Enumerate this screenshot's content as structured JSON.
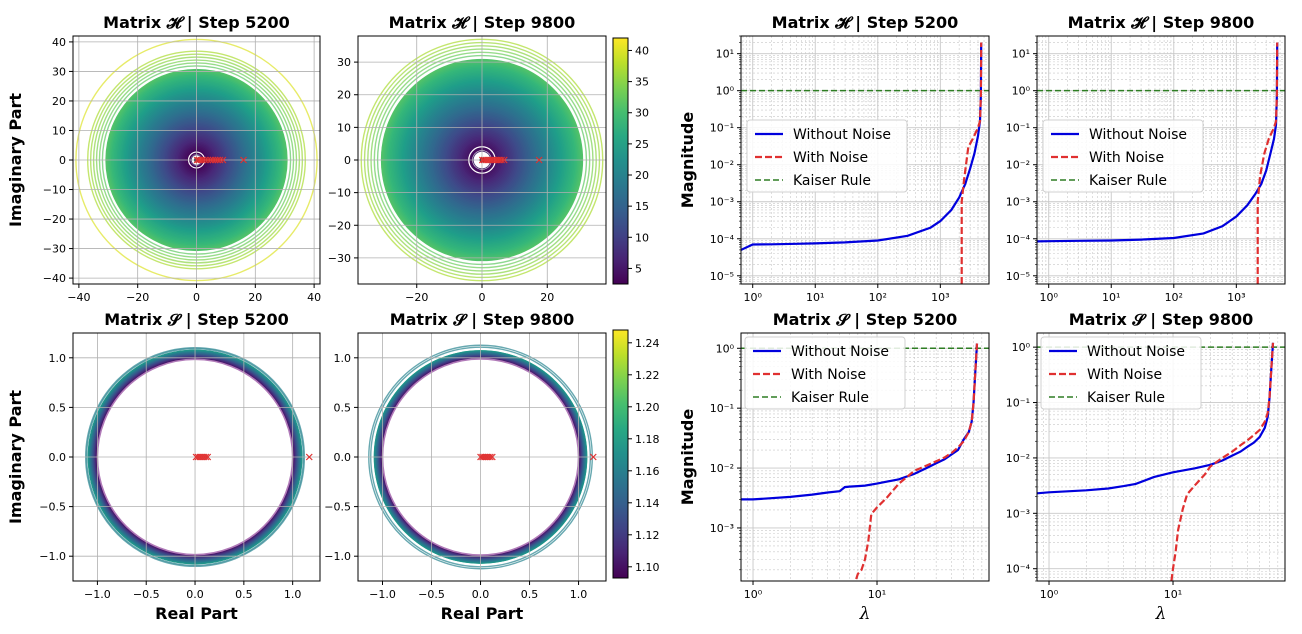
{
  "chart_data": [
    {
      "id": "H5200",
      "type": "scatter",
      "title": "Matrix 𝓗 | Step 5200",
      "xlabel": "",
      "ylabel": "Imaginary Part",
      "xlim": [
        -42,
        42
      ],
      "ylim": [
        -42,
        42
      ],
      "xticks": [
        -40,
        -20,
        0,
        20,
        40
      ],
      "yticks": [
        -40,
        -30,
        -20,
        -10,
        0,
        10,
        20,
        30,
        40
      ],
      "grid": true,
      "rings": {
        "r_inner": 2,
        "r_outer": 31,
        "sparse_radii": [
          32,
          33,
          34,
          35,
          36,
          37,
          41
        ],
        "scale": "H"
      },
      "eigenvalues": [
        0.2,
        0.8,
        1.5,
        2.2,
        3.0,
        3.9,
        4.8,
        5.6,
        6.4,
        7.2,
        8.0,
        9.0,
        16.0
      ]
    },
    {
      "id": "H9800",
      "type": "scatter",
      "title": "Matrix 𝓗 | Step 9800",
      "xlabel": "",
      "ylabel": "",
      "xlim": [
        -38,
        38
      ],
      "ylim": [
        -38,
        38
      ],
      "xticks": [
        -20,
        0,
        20
      ],
      "yticks": [
        -30,
        -20,
        -10,
        0,
        10,
        20,
        30
      ],
      "grid": true,
      "rings": {
        "r_inner": 3,
        "r_outer": 31,
        "sparse_radii": [
          32,
          33,
          34,
          35,
          36,
          37
        ],
        "scale": "H"
      },
      "eigenvalues": [
        0.1,
        0.6,
        1.2,
        1.8,
        2.4,
        3.0,
        3.6,
        4.2,
        4.8,
        5.4,
        6.0,
        6.8,
        17.5
      ]
    },
    {
      "id": "S5200",
      "type": "scatter",
      "title": "Matrix 𝓢 | Step 5200",
      "xlabel": "Real Part",
      "ylabel": "Imaginary Part",
      "xlim": [
        -1.25,
        1.28
      ],
      "ylim": [
        -1.25,
        1.25
      ],
      "xticks": [
        -1.0,
        -0.5,
        0.0,
        0.5,
        1.0
      ],
      "yticks": [
        -1.0,
        -0.5,
        0.0,
        0.5,
        1.0
      ],
      "xticklabels": [
        "−1.0",
        "−0.5",
        "0.0",
        "0.5",
        "1.0"
      ],
      "yticklabels": [
        "−1.0",
        "−0.5",
        "0.0",
        "0.5",
        "1.0"
      ],
      "grid": true,
      "rings": {
        "r_inner": 1.0,
        "r_outer": 1.1,
        "sparse_radii": [
          1.11,
          1.12
        ],
        "scale": "S"
      },
      "eigenvalues": [
        0.01,
        0.03,
        0.05,
        0.07,
        0.09,
        0.11,
        0.13,
        1.17
      ]
    },
    {
      "id": "S9800",
      "type": "scatter",
      "title": "Matrix 𝓢 | Step 9800",
      "xlabel": "Real Part",
      "ylabel": "",
      "xlim": [
        -1.25,
        1.28
      ],
      "ylim": [
        -1.25,
        1.25
      ],
      "xticks": [
        -1.0,
        -0.5,
        0.0,
        0.5,
        1.0
      ],
      "yticks": [
        -1.0,
        -0.5,
        0.0,
        0.5,
        1.0
      ],
      "xticklabels": [
        "−1.0",
        "−0.5",
        "0.0",
        "0.5",
        "1.0"
      ],
      "yticklabels": [
        "−1.0",
        "−0.5",
        "0.0",
        "0.5",
        "1.0"
      ],
      "grid": true,
      "rings": {
        "r_inner": 1.0,
        "r_outer": 1.09,
        "sparse_radii": [
          1.12,
          1.14
        ],
        "scale": "S"
      },
      "eigenvalues": [
        0.0,
        0.02,
        0.04,
        0.06,
        0.08,
        0.1,
        0.12,
        1.15
      ]
    },
    {
      "id": "HS5200",
      "type": "line",
      "title": "Matrix 𝓗 | Step 5200",
      "xlabel": "",
      "ylabel": "Magnitude",
      "xscale": "log",
      "yscale": "log",
      "xlim": [
        0.65,
        6000
      ],
      "ylim": [
        6e-06,
        30
      ],
      "xticks": [
        1,
        10,
        100,
        1000
      ],
      "yticks": [
        1e-05,
        0.0001,
        0.001,
        0.01,
        0.1,
        1,
        10
      ],
      "xticklabels": [
        "10⁰",
        "10¹",
        "10²",
        "10³"
      ],
      "yticklabels": [
        "10⁻⁵",
        "10⁻⁴",
        "10⁻³",
        "10⁻²",
        "10⁻¹",
        "10⁰",
        "10¹"
      ],
      "legend": "center-left",
      "kaiser": 1.0,
      "series": [
        {
          "name": "Without Noise",
          "x": [
            0.65,
            1,
            2,
            5,
            10,
            30,
            100,
            300,
            700,
            1000,
            1500,
            2000,
            2500,
            3000,
            3500,
            4000,
            4300,
            4450,
            4500
          ],
          "y": [
            5e-05,
            7e-05,
            7.1e-05,
            7.3e-05,
            7.5e-05,
            8e-05,
            9e-05,
            0.00012,
            0.0002,
            0.0003,
            0.0006,
            0.0013,
            0.003,
            0.008,
            0.02,
            0.06,
            0.15,
            0.8,
            20
          ]
        },
        {
          "name": "With Noise",
          "x": [
            2200,
            2200,
            2400,
            2800,
            3300,
            4000,
            4300,
            4450,
            4500
          ],
          "y": [
            6e-06,
            0.001,
            0.004,
            0.03,
            0.05,
            0.1,
            0.15,
            0.8,
            20
          ]
        }
      ]
    },
    {
      "id": "HS9800",
      "type": "line",
      "title": "Matrix 𝓗 | Step 9800",
      "xlabel": "",
      "ylabel": "",
      "xscale": "log",
      "yscale": "log",
      "xlim": [
        0.65,
        6000
      ],
      "ylim": [
        6e-06,
        30
      ],
      "xticks": [
        1,
        10,
        100,
        1000
      ],
      "yticks": [
        1e-05,
        0.0001,
        0.001,
        0.01,
        0.1,
        1,
        10
      ],
      "xticklabels": [
        "10⁰",
        "10¹",
        "10²",
        "10³"
      ],
      "yticklabels": [
        "10⁻⁵",
        "10⁻⁴",
        "10⁻³",
        "10⁻²",
        "10⁻¹",
        "10⁰",
        "10¹"
      ],
      "legend": "center-left",
      "kaiser": 1.0,
      "series": [
        {
          "name": "Without Noise",
          "x": [
            0.65,
            1,
            3,
            10,
            30,
            100,
            300,
            600,
            1000,
            1500,
            2000,
            2500,
            3000,
            3500,
            4000,
            4300,
            4450,
            4500
          ],
          "y": [
            8.5e-05,
            8.6e-05,
            8.8e-05,
            9e-05,
            9.5e-05,
            0.000105,
            0.00014,
            0.00022,
            0.0004,
            0.0008,
            0.0016,
            0.003,
            0.007,
            0.02,
            0.05,
            0.12,
            0.8,
            20
          ]
        },
        {
          "name": "With Noise",
          "x": [
            2200,
            2200,
            2400,
            2800,
            3300,
            4000,
            4300,
            4450,
            4500
          ],
          "y": [
            6e-06,
            0.001,
            0.005,
            0.02,
            0.05,
            0.1,
            0.15,
            0.8,
            20
          ]
        }
      ]
    },
    {
      "id": "SS5200",
      "type": "line",
      "title": "Matrix 𝓢 | Step 5200",
      "xlabel": "λ",
      "ylabel": "Magnitude",
      "xscale": "log",
      "yscale": "log",
      "xlim": [
        0.8,
        80
      ],
      "ylim": [
        0.00013,
        1.8
      ],
      "xticks": [
        1,
        10
      ],
      "yticks": [
        0.001,
        0.01,
        0.1,
        1
      ],
      "xticklabels": [
        "10⁰",
        "10¹"
      ],
      "yticklabels": [
        "10⁻³",
        "10⁻²",
        "10⁻¹",
        "10⁰"
      ],
      "legend": "upper-left",
      "kaiser": 1.0,
      "series": [
        {
          "name": "Without Noise",
          "x": [
            0.8,
            1,
            2,
            3,
            4,
            5,
            5.5,
            6,
            7,
            8,
            10,
            15,
            20,
            25,
            30,
            35,
            40,
            45,
            50,
            55,
            58,
            60,
            62,
            64
          ],
          "y": [
            0.003,
            0.003,
            0.0033,
            0.0036,
            0.0039,
            0.0041,
            0.0048,
            0.0049,
            0.005,
            0.0051,
            0.0055,
            0.0065,
            0.008,
            0.01,
            0.012,
            0.014,
            0.017,
            0.02,
            0.03,
            0.04,
            0.06,
            0.12,
            0.4,
            1.2
          ]
        },
        {
          "name": "With Noise",
          "x": [
            6.8,
            7,
            7.5,
            8,
            8.5,
            9,
            10,
            12,
            15,
            18,
            20,
            25,
            30,
            35,
            40,
            45,
            50,
            55,
            58,
            60,
            62,
            64
          ],
          "y": [
            0.00014,
            0.00017,
            0.0002,
            0.0003,
            0.0006,
            0.0017,
            0.0022,
            0.0032,
            0.0055,
            0.0075,
            0.009,
            0.011,
            0.013,
            0.015,
            0.018,
            0.022,
            0.028,
            0.04,
            0.06,
            0.12,
            0.4,
            1.2
          ]
        }
      ]
    },
    {
      "id": "SS9800",
      "type": "line",
      "title": "Matrix 𝓢 | Step 9800",
      "xlabel": "λ",
      "ylabel": "",
      "xscale": "log",
      "yscale": "log",
      "xlim": [
        0.8,
        80
      ],
      "ylim": [
        6e-05,
        1.8
      ],
      "xticks": [
        1,
        10
      ],
      "yticks": [
        0.0001,
        0.001,
        0.01,
        0.1,
        1
      ],
      "xticklabels": [
        "10⁰",
        "10¹"
      ],
      "yticklabels": [
        "10⁻⁴",
        "10⁻³",
        "10⁻²",
        "10⁻¹",
        "10⁰"
      ],
      "legend": "upper-left",
      "kaiser": 1.0,
      "series": [
        {
          "name": "Without Noise",
          "x": [
            0.8,
            1,
            2,
            3,
            4,
            5,
            7,
            10,
            15,
            20,
            25,
            30,
            35,
            40,
            45,
            50,
            55,
            58,
            60,
            62,
            64
          ],
          "y": [
            0.0023,
            0.0024,
            0.0026,
            0.0028,
            0.0031,
            0.0034,
            0.0045,
            0.0055,
            0.0065,
            0.0075,
            0.009,
            0.011,
            0.013,
            0.016,
            0.019,
            0.024,
            0.035,
            0.055,
            0.12,
            0.4,
            1.2
          ]
        },
        {
          "name": "With Noise",
          "x": [
            9.7,
            10,
            10.5,
            11,
            12,
            13,
            15,
            18,
            20,
            25,
            30,
            35,
            40,
            45,
            50,
            55,
            58,
            60,
            62,
            64
          ],
          "y": [
            6e-05,
            0.0001,
            0.0002,
            0.0005,
            0.0012,
            0.0022,
            0.0032,
            0.005,
            0.007,
            0.01,
            0.013,
            0.017,
            0.021,
            0.026,
            0.032,
            0.045,
            0.065,
            0.12,
            0.4,
            1.2
          ]
        }
      ]
    }
  ],
  "colorbars": [
    {
      "id": "H",
      "ticks": [
        5,
        10,
        15,
        20,
        25,
        30,
        35,
        40
      ],
      "ticklabels": [
        "5",
        "10",
        "15",
        "20",
        "25",
        "30",
        "35",
        "40"
      ],
      "range": [
        2.5,
        42
      ]
    },
    {
      "id": "S",
      "ticks": [
        1.1,
        1.12,
        1.14,
        1.16,
        1.18,
        1.2,
        1.22,
        1.24
      ],
      "ticklabels": [
        "1.10",
        "1.12",
        "1.14",
        "1.16",
        "1.18",
        "1.20",
        "1.22",
        "1.24"
      ],
      "range": [
        1.093,
        1.248
      ]
    }
  ],
  "colors": {
    "without_noise": "#0000dd",
    "with_noise": "#e03030",
    "kaiser": "#2e7d23",
    "eigen_marker": "#e03030",
    "grid": "#b0b0b0"
  }
}
